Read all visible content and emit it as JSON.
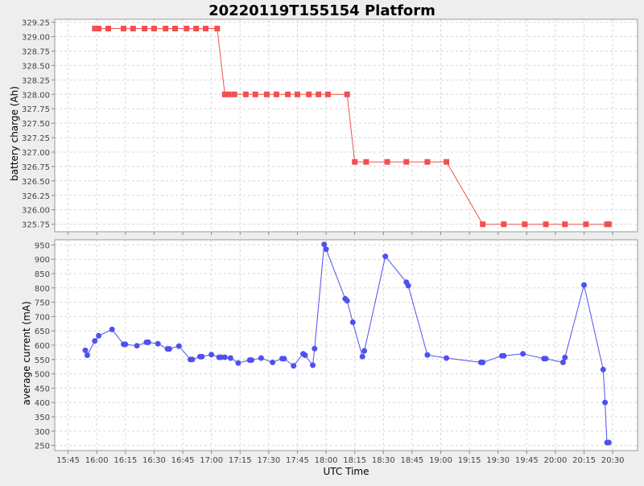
{
  "chart_data": [
    {
      "type": "line",
      "title": "20220119T155154 Platform",
      "xlabel": "UTC Time",
      "ylabel": "battery charge (Ah)",
      "xlim": [
        "15:38",
        "20:43"
      ],
      "ylim": [
        325.62,
        329.3
      ],
      "yticks": [
        325.75,
        326.0,
        326.25,
        326.5,
        326.75,
        327.0,
        327.25,
        327.5,
        327.75,
        328.0,
        328.25,
        328.5,
        328.75,
        329.0,
        329.25
      ],
      "grid": true,
      "series": [
        {
          "color": "#f05050",
          "marker": "square",
          "x": [
            "15:59",
            "16:00",
            "16:01",
            "16:06",
            "16:14",
            "16:19",
            "16:25",
            "16:30",
            "16:36",
            "16:41",
            "16:47",
            "16:52",
            "16:57",
            "17:03",
            "17:07",
            "17:09",
            "17:12",
            "17:18",
            "17:23",
            "17:29",
            "17:34",
            "17:40",
            "17:45",
            "17:51",
            "17:56",
            "18:01",
            "18:11",
            "18:15",
            "18:21",
            "18:32",
            "18:42",
            "18:53",
            "19:03",
            "19:22",
            "19:33",
            "19:44",
            "19:55",
            "20:05",
            "20:16",
            "20:27",
            "20:28"
          ],
          "y": [
            329.14,
            329.14,
            329.14,
            329.14,
            329.14,
            329.14,
            329.14,
            329.14,
            329.14,
            329.14,
            329.14,
            329.14,
            329.14,
            329.14,
            328.0,
            328.0,
            328.0,
            328.0,
            328.0,
            328.0,
            328.0,
            328.0,
            328.0,
            328.0,
            328.0,
            328.0,
            328.0,
            326.83,
            326.83,
            326.83,
            326.83,
            326.83,
            326.83,
            325.75,
            325.75,
            325.75,
            325.75,
            325.75,
            325.75,
            325.75,
            325.75
          ]
        }
      ]
    },
    {
      "type": "line",
      "title": "",
      "xlabel": "UTC Time",
      "ylabel": "average current (mA)",
      "xlim": [
        "15:38",
        "20:43"
      ],
      "ylim": [
        232,
        968
      ],
      "yticks": [
        250,
        300,
        350,
        400,
        450,
        500,
        550,
        600,
        650,
        700,
        750,
        800,
        850,
        900,
        950
      ],
      "xticks": [
        "15:45",
        "16:00",
        "16:15",
        "16:30",
        "16:45",
        "17:00",
        "17:15",
        "17:30",
        "17:45",
        "18:00",
        "18:15",
        "18:30",
        "18:45",
        "19:00",
        "19:15",
        "19:30",
        "19:45",
        "20:00",
        "20:15",
        "20:30"
      ],
      "grid": true,
      "series": [
        {
          "color": "#5050f0",
          "marker": "circle",
          "x": [
            "15:54",
            "15:55",
            "15:59",
            "16:01",
            "16:08",
            "16:14",
            "16:15",
            "16:21",
            "16:26",
            "16:27",
            "16:32",
            "16:37",
            "16:38",
            "16:43",
            "16:49",
            "16:50",
            "16:54",
            "16:55",
            "17:00",
            "17:04",
            "17:05",
            "17:07",
            "17:10",
            "17:14",
            "17:20",
            "17:21",
            "17:26",
            "17:32",
            "17:37",
            "17:38",
            "17:43",
            "17:48",
            "17:49",
            "17:53",
            "17:54",
            "17:59",
            "18:00",
            "18:10",
            "18:11",
            "18:14",
            "18:19",
            "18:20",
            "18:31",
            "18:42",
            "18:43",
            "18:53",
            "19:03",
            "19:21",
            "19:22",
            "19:32",
            "19:33",
            "19:43",
            "19:54",
            "19:55",
            "20:04",
            "20:05",
            "20:15",
            "20:25",
            "20:26",
            "20:27",
            "20:28"
          ],
          "y": [
            582,
            565,
            615,
            633,
            655,
            603,
            603,
            598,
            610,
            610,
            605,
            587,
            587,
            597,
            550,
            550,
            560,
            560,
            567,
            558,
            558,
            558,
            555,
            538,
            548,
            548,
            555,
            540,
            553,
            553,
            528,
            570,
            565,
            530,
            588,
            952,
            935,
            762,
            755,
            680,
            560,
            580,
            910,
            820,
            808,
            566,
            555,
            540,
            540,
            563,
            563,
            570,
            553,
            553,
            540,
            557,
            810,
            515,
            400,
            260,
            260
          ]
        }
      ]
    }
  ]
}
